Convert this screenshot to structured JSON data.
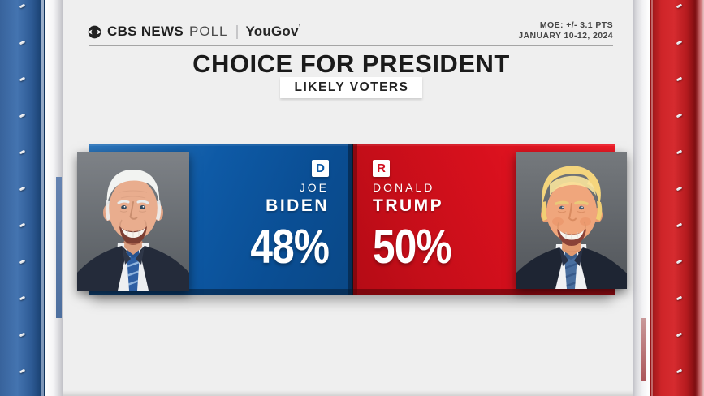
{
  "header": {
    "network": "CBS NEWS",
    "program": "POLL",
    "partner": "YouGov",
    "partner_mark": "’",
    "moe_line1": "MOE: +/- 3.1 PTS",
    "moe_line2": "JANUARY 10-12, 2024"
  },
  "title": "CHOICE FOR PRESIDENT",
  "subtitle": "LIKELY VOTERS",
  "candidates": [
    {
      "party": "D",
      "first": "JOE",
      "last": "BIDEN",
      "pct": "48%"
    },
    {
      "party": "R",
      "first": "DONALD",
      "last": "TRUMP",
      "pct": "50%"
    }
  ],
  "colors": {
    "dem": "#0d5aa6",
    "rep": "#d60e1c",
    "background": "#efefef"
  },
  "chart_data": {
    "type": "bar",
    "title": "CHOICE FOR PRESIDENT",
    "subtitle": "LIKELY VOTERS",
    "source": "CBS NEWS POLL | YouGov",
    "annotations": [
      "MOE: +/- 3.1 PTS",
      "JANUARY 10-12, 2024"
    ],
    "categories": [
      "JOE BIDEN (D)",
      "DONALD TRUMP (R)"
    ],
    "values": [
      48,
      50
    ],
    "unit": "%",
    "colors": [
      "#0d5aa6",
      "#d60e1c"
    ],
    "legend_position": "none",
    "grid": false
  }
}
